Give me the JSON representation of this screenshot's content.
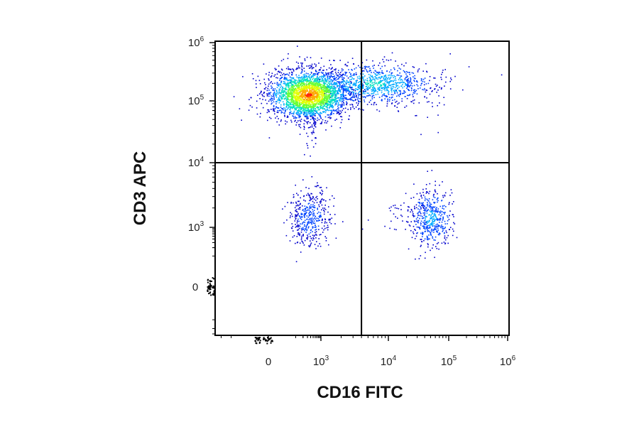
{
  "chart_data": {
    "type": "scatter",
    "subtype": "flow-cytometry density dot plot",
    "title": "",
    "xlabel": "CD16 FITC",
    "ylabel": "CD3 APC",
    "x_scale": "biexponential",
    "y_scale": "biexponential",
    "x_ticks": [
      {
        "value": 0,
        "base": "0",
        "exp": ""
      },
      {
        "value": 1000,
        "base": "10",
        "exp": "3"
      },
      {
        "value": 10000,
        "base": "10",
        "exp": "4"
      },
      {
        "value": 100000,
        "base": "10",
        "exp": "5"
      },
      {
        "value": 1000000,
        "base": "10",
        "exp": "6"
      }
    ],
    "y_ticks": [
      {
        "value": 0,
        "base": "0",
        "exp": ""
      },
      {
        "value": 1000,
        "base": "10",
        "exp": "3"
      },
      {
        "value": 10000,
        "base": "10",
        "exp": "4"
      },
      {
        "value": 100000,
        "base": "10",
        "exp": "5"
      },
      {
        "value": 1000000,
        "base": "10",
        "exp": "6"
      }
    ],
    "quadrant_gate": {
      "x": 4000,
      "y": 10000
    },
    "populations": [
      {
        "region": "CD3+ CD16-",
        "center": {
          "x": 320,
          "y": 130000
        },
        "density": "high"
      },
      {
        "region": "CD3+ CD16 dim",
        "center": {
          "x": 6000,
          "y": 200000
        },
        "density": "medium"
      },
      {
        "region": "CD3- CD16-",
        "center": {
          "x": 350,
          "y": 1400
        },
        "density": "low"
      },
      {
        "region": "CD3- CD16+",
        "center": {
          "x": 50000,
          "y": 1400
        },
        "density": "low"
      }
    ],
    "density_colors": [
      "#0000cc",
      "#0044ff",
      "#00aaff",
      "#00e0c0",
      "#66ff33",
      "#e0ff00",
      "#ffaa00",
      "#ff2200"
    ],
    "grid": false
  }
}
